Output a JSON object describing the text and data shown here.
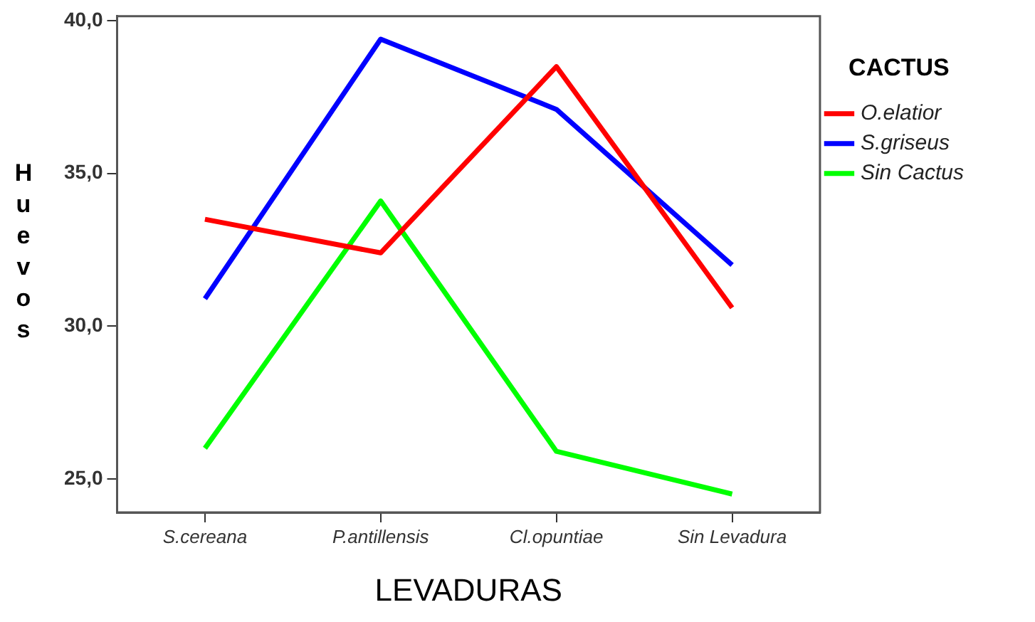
{
  "chart_data": {
    "type": "line",
    "xlabel": "LEVADURAS",
    "ylabel": "Huevos",
    "legend_title": "CACTUS",
    "legend": "right",
    "grid": false,
    "marker": "none",
    "line_style": "solid",
    "categories": [
      "S.cereana",
      "P.antillensis",
      "Cl.opuntiae",
      "Sin Levadura"
    ],
    "ylim": [
      23.9,
      40.15
    ],
    "yticks": [
      {
        "value": 25,
        "label": "25,0"
      },
      {
        "value": 30,
        "label": "30,0"
      },
      {
        "value": 35,
        "label": "35,0"
      },
      {
        "value": 40,
        "label": "40,0"
      }
    ],
    "series": [
      {
        "name": "O.elatior",
        "color": "#ff0000",
        "values": [
          33.5,
          32.4,
          38.5,
          30.6
        ]
      },
      {
        "name": "S.griseus",
        "color": "#0000ff",
        "values": [
          30.9,
          39.4,
          37.1,
          32.0
        ]
      },
      {
        "name": "Sin Cactus",
        "color": "#00ff00",
        "values": [
          26.0,
          34.1,
          25.9,
          24.5
        ]
      }
    ]
  }
}
